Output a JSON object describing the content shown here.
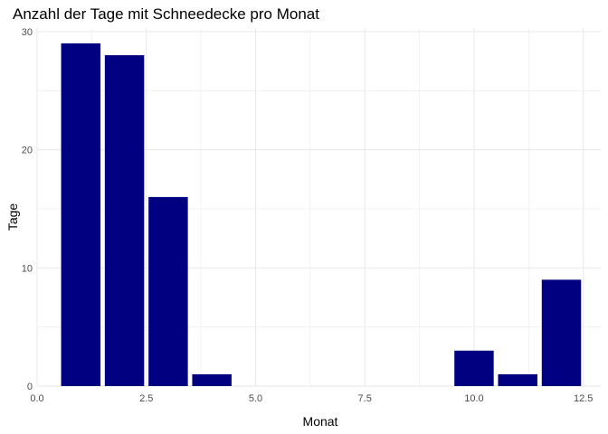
{
  "chart_data": {
    "type": "bar",
    "title": "Anzahl der Tage mit Schneedecke pro Monat",
    "xlabel": "Monat",
    "ylabel": "Tage",
    "x": [
      1,
      2,
      3,
      4,
      10,
      11,
      12
    ],
    "values": [
      29,
      28,
      16,
      1,
      3,
      1,
      9
    ],
    "xlim": [
      0,
      12.9
    ],
    "ylim": [
      0,
      30.3
    ],
    "x_ticks": [
      0,
      2.5,
      5,
      7.5,
      10,
      12.5
    ],
    "x_tick_labels": [
      "0.0",
      "2.5",
      "5.0",
      "7.5",
      "10.0",
      "12.5"
    ],
    "y_ticks": [
      0,
      10,
      20,
      30
    ],
    "y_tick_labels": [
      "0",
      "10",
      "20",
      "30"
    ],
    "bar_color": "#000080",
    "grid": true,
    "grid_color": "#ebebeb"
  }
}
